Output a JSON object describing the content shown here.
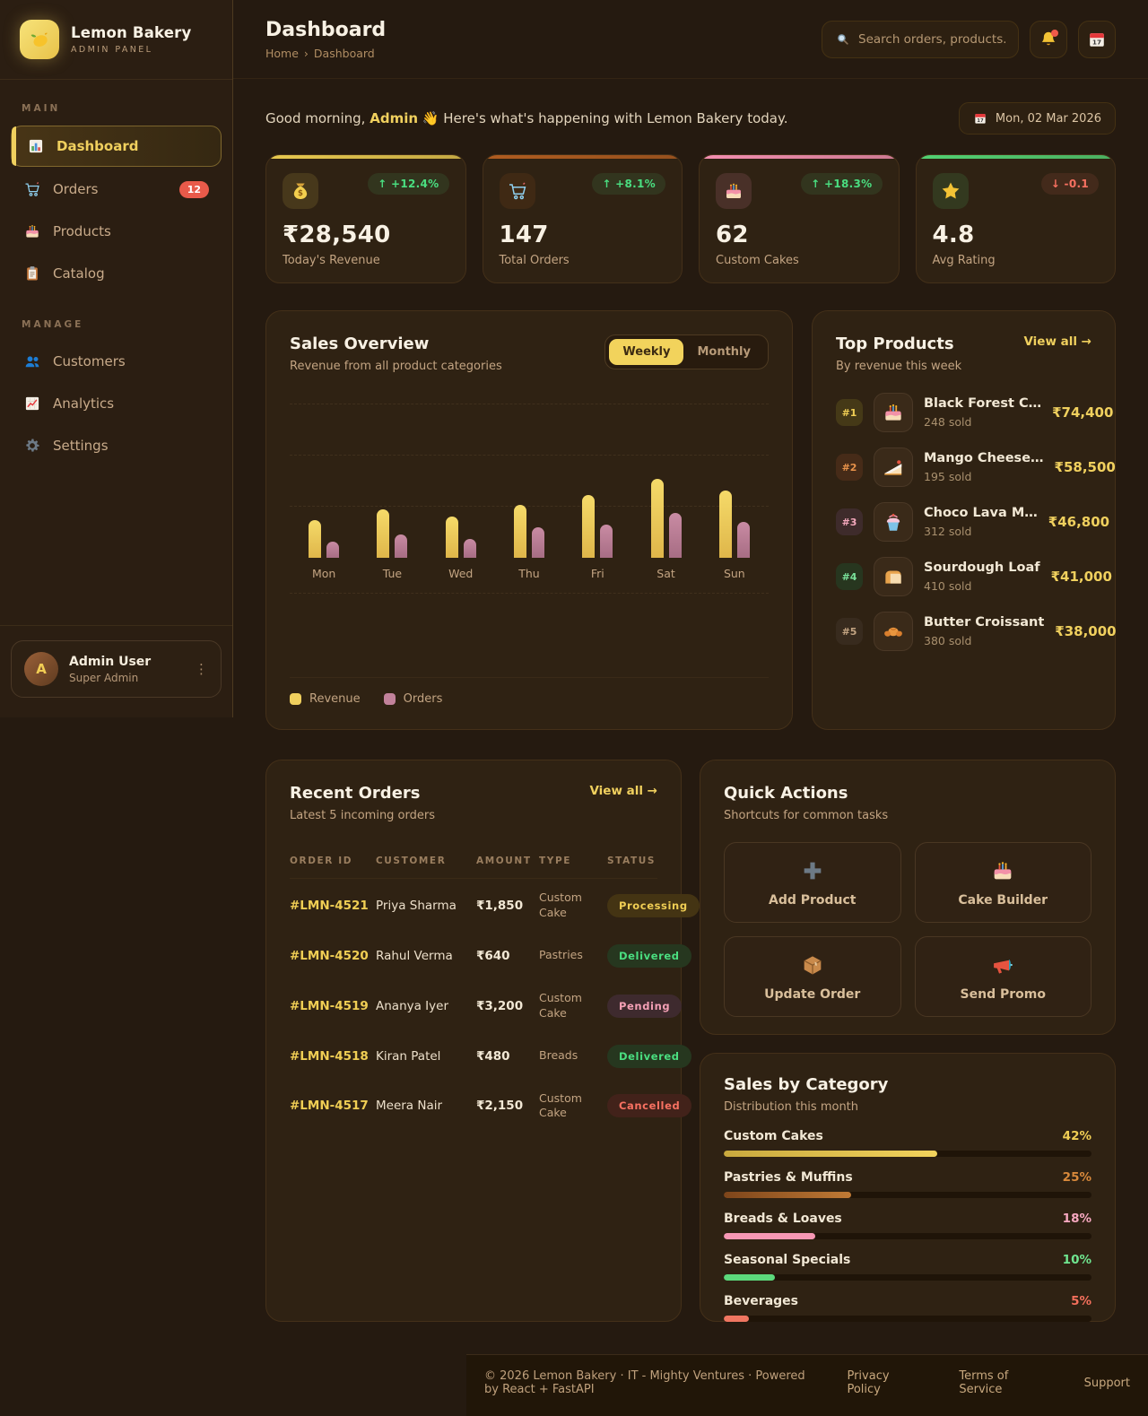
{
  "app": {
    "name": "Lemon Bakery",
    "subtitle": "ADMIN PANEL"
  },
  "header": {
    "title": "Dashboard",
    "breadcrumb_home": "Home",
    "breadcrumb_sep": "›",
    "breadcrumb_current": "Dashboard",
    "search_placeholder": "Search orders, products..",
    "date_chip": "Mon, 02 Mar 2026"
  },
  "greeting": {
    "prefix": "Good morning,",
    "name": "Admin",
    "wave": "👋",
    "suffix": "Here's what's happening with Lemon Bakery today."
  },
  "sidebar": {
    "sections": [
      {
        "label": "MAIN",
        "items": [
          {
            "label": "Dashboard",
            "icon": "dashboard-icon",
            "active": true
          },
          {
            "label": "Orders",
            "icon": "cart-icon",
            "badge": "12"
          },
          {
            "label": "Products",
            "icon": "cake-icon"
          },
          {
            "label": "Catalog",
            "icon": "clipboard-icon"
          }
        ]
      },
      {
        "label": "MANAGE",
        "items": [
          {
            "label": "Customers",
            "icon": "users-icon"
          },
          {
            "label": "Analytics",
            "icon": "analytics-icon"
          },
          {
            "label": "Settings",
            "icon": "gear-icon"
          }
        ]
      }
    ],
    "user": {
      "initial": "A",
      "name": "Admin User",
      "role": "Super Admin"
    }
  },
  "stats": [
    {
      "icon": "money-icon",
      "accent": "#e8c94f",
      "change": "↑ +12.4%",
      "trend": "up",
      "value": "₹28,540",
      "label": "Today's Revenue"
    },
    {
      "icon": "cart-icon",
      "accent": "#b05c20",
      "change": "↑ +8.1%",
      "trend": "up",
      "value": "147",
      "label": "Total Orders"
    },
    {
      "icon": "cake-icon",
      "accent": "#f48fb1",
      "change": "↑ +18.3%",
      "trend": "up",
      "value": "62",
      "label": "Custom Cakes"
    },
    {
      "icon": "star-icon",
      "accent": "#52d273",
      "change": "↓ -0.1",
      "trend": "down",
      "value": "4.8",
      "label": "Avg Rating"
    }
  ],
  "sales_overview": {
    "title": "Sales Overview",
    "subtitle": "Revenue from all product categories",
    "toggles": [
      "Weekly",
      "Monthly"
    ],
    "active_toggle": "Weekly"
  },
  "chart_data": {
    "type": "bar",
    "title": "Sales Overview",
    "categories": [
      "Mon",
      "Tue",
      "Wed",
      "Thu",
      "Fri",
      "Sat",
      "Sun"
    ],
    "series": [
      {
        "name": "Revenue",
        "color": "#f0d05e",
        "values": [
          48,
          61,
          52,
          67,
          79,
          100,
          85
        ]
      },
      {
        "name": "Orders",
        "color": "#c2829b",
        "values": [
          21,
          30,
          24,
          39,
          42,
          57,
          45
        ]
      }
    ],
    "values_unit": "percent_of_max_bar (no numeric axis labels shown)",
    "ylim": [
      0,
      100
    ],
    "grid": "dashed-horizontal",
    "legend_position": "bottom"
  },
  "top_products": {
    "title": "Top Products",
    "subtitle": "By revenue this week",
    "view_all": "View all →",
    "items": [
      {
        "rank": "#1",
        "icon": "cake-icon",
        "name": "Black Forest C…",
        "sold": "248 sold",
        "amount": "₹74,400"
      },
      {
        "rank": "#2",
        "icon": "cheesecake-icon",
        "name": "Mango Cheese…",
        "sold": "195 sold",
        "amount": "₹58,500"
      },
      {
        "rank": "#3",
        "icon": "cupcake-icon",
        "name": "Choco Lava M…",
        "sold": "312 sold",
        "amount": "₹46,800"
      },
      {
        "rank": "#4",
        "icon": "bread-icon",
        "name": "Sourdough Loaf",
        "sold": "410 sold",
        "amount": "₹41,000"
      },
      {
        "rank": "#5",
        "icon": "croissant-icon",
        "name": "Butter Croissant",
        "sold": "380 sold",
        "amount": "₹38,000"
      }
    ]
  },
  "recent_orders": {
    "title": "Recent Orders",
    "subtitle": "Latest 5 incoming orders",
    "view_all": "View all →",
    "columns": [
      "ORDER ID",
      "CUSTOMER",
      "AMOUNT",
      "TYPE",
      "STATUS"
    ],
    "rows": [
      {
        "id": "#LMN-4521",
        "customer": "Priya Sharma",
        "amount": "₹1,850",
        "type": "Custom Cake",
        "status": "Processing"
      },
      {
        "id": "#LMN-4520",
        "customer": "Rahul Verma",
        "amount": "₹640",
        "type": "Pastries",
        "status": "Delivered"
      },
      {
        "id": "#LMN-4519",
        "customer": "Ananya Iyer",
        "amount": "₹3,200",
        "type": "Custom Cake",
        "status": "Pending"
      },
      {
        "id": "#LMN-4518",
        "customer": "Kiran Patel",
        "amount": "₹480",
        "type": "Breads",
        "status": "Delivered"
      },
      {
        "id": "#LMN-4517",
        "customer": "Meera Nair",
        "amount": "₹2,150",
        "type": "Custom Cake",
        "status": "Cancelled"
      }
    ]
  },
  "quick_actions": {
    "title": "Quick Actions",
    "subtitle": "Shortcuts for common tasks",
    "actions": [
      {
        "icon": "plus-icon",
        "label": "Add Product"
      },
      {
        "icon": "cake-icon",
        "label": "Cake Builder"
      },
      {
        "icon": "box-icon",
        "label": "Update Order"
      },
      {
        "icon": "megaphone-icon",
        "label": "Send Promo"
      }
    ]
  },
  "sales_by_category": {
    "title": "Sales by Category",
    "subtitle": "Distribution this month",
    "categories": [
      {
        "name": "Custom Cakes",
        "percent": 42,
        "color": "#f0ce54",
        "bar": "linear-gradient(90deg,#c9a93e,#f2d35c)"
      },
      {
        "name": "Pastries & Muffins",
        "percent": 25,
        "color": "#d8893b",
        "bar": "linear-gradient(90deg,#7e451a,#c07a35)"
      },
      {
        "name": "Breads & Loaves",
        "percent": 18,
        "color": "#f7a8c0",
        "bar": "#f797b4"
      },
      {
        "name": "Seasonal Specials",
        "percent": 10,
        "color": "#6fe58f",
        "bar": "#5cd97c"
      },
      {
        "name": "Beverages",
        "percent": 5,
        "color": "#f4705c",
        "bar": "#f07661"
      }
    ]
  },
  "footer": {
    "copyright": "© 2026 Lemon Bakery · IT - Mighty Ventures · Powered by React + FastAPI",
    "links": [
      "Privacy Policy",
      "Terms of Service",
      "Support"
    ]
  }
}
